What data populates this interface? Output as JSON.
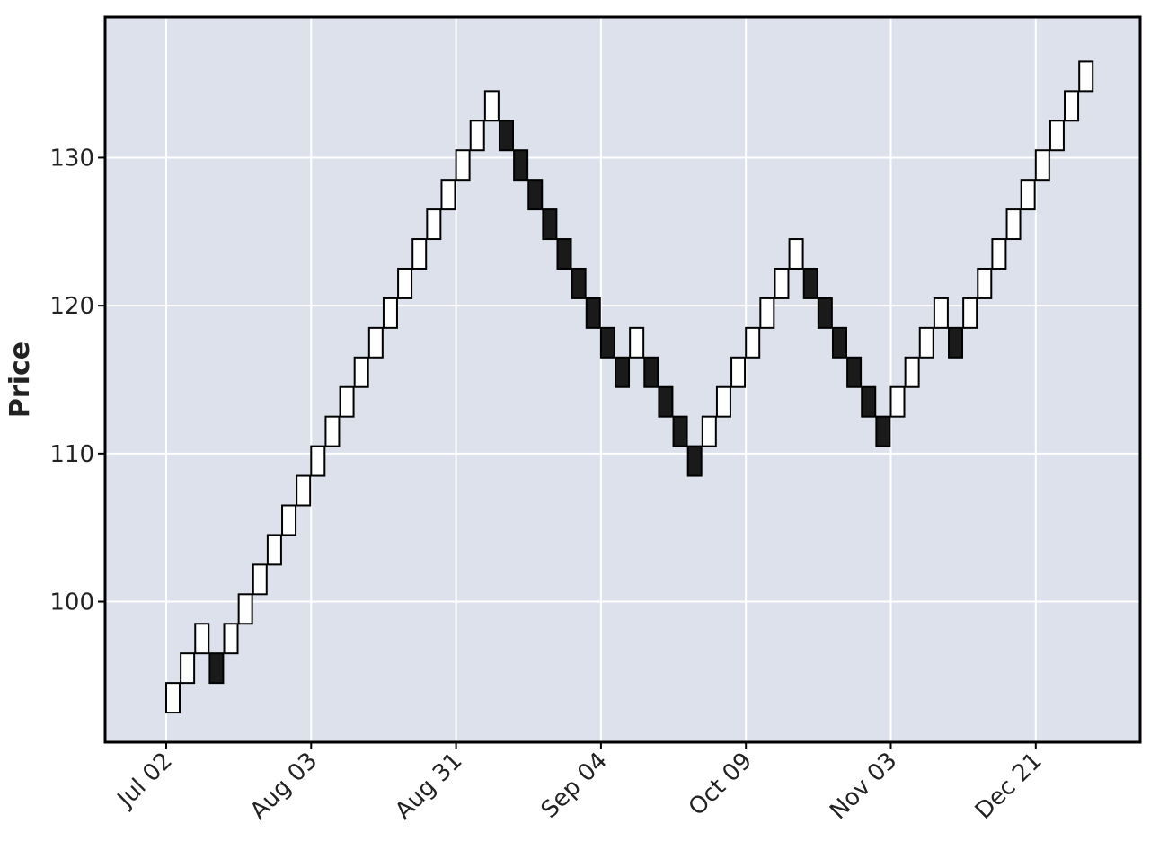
{
  "chart_data": {
    "type": "renko",
    "title": "",
    "xlabel": "",
    "ylabel": "Price",
    "ylim": [
      90.5,
      139.5
    ],
    "yticks": [
      100,
      110,
      120,
      130
    ],
    "brick_size": 2,
    "xtick_labels": [
      "Jul 02",
      "Aug 03",
      "Aug 31",
      "Sep 04",
      "Oct 09",
      "Nov 03",
      "Dec 21"
    ],
    "xtick_brick_index": [
      0,
      10,
      20,
      30,
      40,
      50,
      60
    ],
    "bricks": [
      {
        "low": 92.5,
        "high": 94.5,
        "dir": "up"
      },
      {
        "low": 94.5,
        "high": 96.5,
        "dir": "up"
      },
      {
        "low": 96.5,
        "high": 98.5,
        "dir": "up"
      },
      {
        "low": 94.5,
        "high": 96.5,
        "dir": "down"
      },
      {
        "low": 96.5,
        "high": 98.5,
        "dir": "up"
      },
      {
        "low": 98.5,
        "high": 100.5,
        "dir": "up"
      },
      {
        "low": 100.5,
        "high": 102.5,
        "dir": "up"
      },
      {
        "low": 102.5,
        "high": 104.5,
        "dir": "up"
      },
      {
        "low": 104.5,
        "high": 106.5,
        "dir": "up"
      },
      {
        "low": 106.5,
        "high": 108.5,
        "dir": "up"
      },
      {
        "low": 108.5,
        "high": 110.5,
        "dir": "up"
      },
      {
        "low": 110.5,
        "high": 112.5,
        "dir": "up"
      },
      {
        "low": 112.5,
        "high": 114.5,
        "dir": "up"
      },
      {
        "low": 114.5,
        "high": 116.5,
        "dir": "up"
      },
      {
        "low": 116.5,
        "high": 118.5,
        "dir": "up"
      },
      {
        "low": 118.5,
        "high": 120.5,
        "dir": "up"
      },
      {
        "low": 120.5,
        "high": 122.5,
        "dir": "up"
      },
      {
        "low": 122.5,
        "high": 124.5,
        "dir": "up"
      },
      {
        "low": 124.5,
        "high": 126.5,
        "dir": "up"
      },
      {
        "low": 126.5,
        "high": 128.5,
        "dir": "up"
      },
      {
        "low": 128.5,
        "high": 130.5,
        "dir": "up"
      },
      {
        "low": 130.5,
        "high": 132.5,
        "dir": "up"
      },
      {
        "low": 132.5,
        "high": 134.5,
        "dir": "up"
      },
      {
        "low": 130.5,
        "high": 132.5,
        "dir": "down"
      },
      {
        "low": 128.5,
        "high": 130.5,
        "dir": "down"
      },
      {
        "low": 126.5,
        "high": 128.5,
        "dir": "down"
      },
      {
        "low": 124.5,
        "high": 126.5,
        "dir": "down"
      },
      {
        "low": 122.5,
        "high": 124.5,
        "dir": "down"
      },
      {
        "low": 120.5,
        "high": 122.5,
        "dir": "down"
      },
      {
        "low": 118.5,
        "high": 120.5,
        "dir": "down"
      },
      {
        "low": 116.5,
        "high": 118.5,
        "dir": "down"
      },
      {
        "low": 114.5,
        "high": 116.5,
        "dir": "down"
      },
      {
        "low": 116.5,
        "high": 118.5,
        "dir": "up"
      },
      {
        "low": 114.5,
        "high": 116.5,
        "dir": "down"
      },
      {
        "low": 112.5,
        "high": 114.5,
        "dir": "down"
      },
      {
        "low": 110.5,
        "high": 112.5,
        "dir": "down"
      },
      {
        "low": 108.5,
        "high": 110.5,
        "dir": "down"
      },
      {
        "low": 110.5,
        "high": 112.5,
        "dir": "up"
      },
      {
        "low": 112.5,
        "high": 114.5,
        "dir": "up"
      },
      {
        "low": 114.5,
        "high": 116.5,
        "dir": "up"
      },
      {
        "low": 116.5,
        "high": 118.5,
        "dir": "up"
      },
      {
        "low": 118.5,
        "high": 120.5,
        "dir": "up"
      },
      {
        "low": 120.5,
        "high": 122.5,
        "dir": "up"
      },
      {
        "low": 122.5,
        "high": 124.5,
        "dir": "up"
      },
      {
        "low": 120.5,
        "high": 122.5,
        "dir": "down"
      },
      {
        "low": 118.5,
        "high": 120.5,
        "dir": "down"
      },
      {
        "low": 116.5,
        "high": 118.5,
        "dir": "down"
      },
      {
        "low": 114.5,
        "high": 116.5,
        "dir": "down"
      },
      {
        "low": 112.5,
        "high": 114.5,
        "dir": "down"
      },
      {
        "low": 110.5,
        "high": 112.5,
        "dir": "down"
      },
      {
        "low": 112.5,
        "high": 114.5,
        "dir": "up"
      },
      {
        "low": 114.5,
        "high": 116.5,
        "dir": "up"
      },
      {
        "low": 116.5,
        "high": 118.5,
        "dir": "up"
      },
      {
        "low": 118.5,
        "high": 120.5,
        "dir": "up"
      },
      {
        "low": 116.5,
        "high": 118.5,
        "dir": "down"
      },
      {
        "low": 118.5,
        "high": 120.5,
        "dir": "up"
      },
      {
        "low": 120.5,
        "high": 122.5,
        "dir": "up"
      },
      {
        "low": 122.5,
        "high": 124.5,
        "dir": "up"
      },
      {
        "low": 124.5,
        "high": 126.5,
        "dir": "up"
      },
      {
        "low": 126.5,
        "high": 128.5,
        "dir": "up"
      },
      {
        "low": 128.5,
        "high": 130.5,
        "dir": "up"
      },
      {
        "low": 130.5,
        "high": 132.5,
        "dir": "up"
      },
      {
        "low": 132.5,
        "high": 134.5,
        "dir": "up"
      },
      {
        "low": 134.5,
        "high": 136.5,
        "dir": "up"
      }
    ],
    "grid": true,
    "colors": {
      "background": "#dce1ec",
      "grid": "#ffffff",
      "up_fill": "#ffffff",
      "down_fill": "#1a1a1a",
      "edge": "#000000",
      "frame": "#000000"
    }
  }
}
